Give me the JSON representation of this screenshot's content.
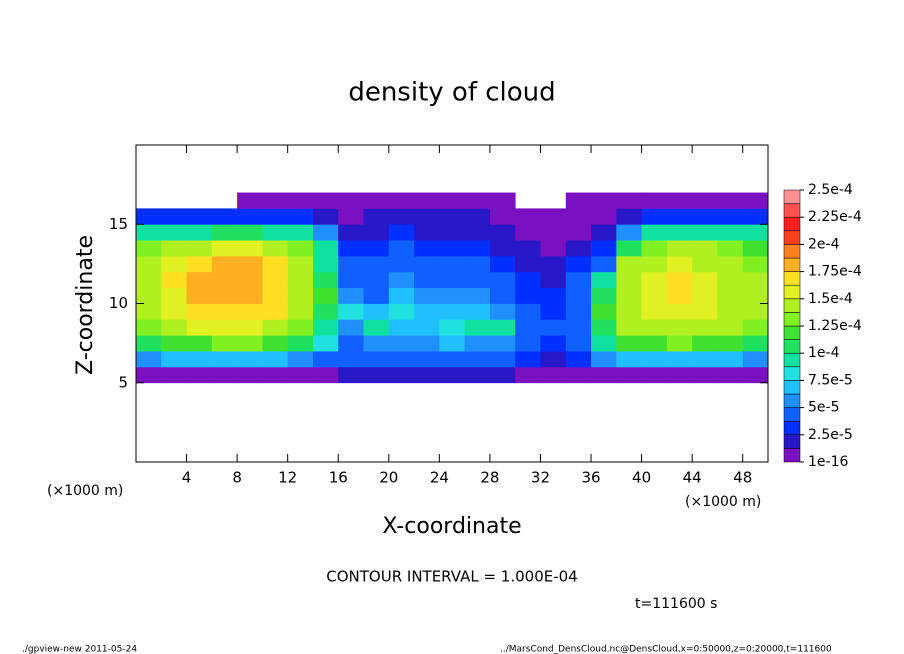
{
  "chart_data": {
    "type": "heatmap",
    "title": "density of cloud",
    "x_label": "X-coordinate",
    "y_label": "Z-coordinate",
    "x_unit": "(×1000 m)",
    "annotation": "CONTOUR INTERVAL = 1.000E-04",
    "time_label": "t=111600 s",
    "footer_left": "./gpview-new  2011-05-24",
    "footer_right": "../MarsCond_DensCloud.nc@DensCloud,x=0:50000,z=0:20000,t=111600",
    "xlim": [
      0,
      50
    ],
    "ylim": [
      0,
      20
    ],
    "xticks": [
      4,
      8,
      12,
      16,
      20,
      24,
      28,
      32,
      36,
      40,
      44,
      48
    ],
    "yticks": [
      5,
      10,
      15
    ],
    "x": [
      1,
      3,
      5,
      7,
      9,
      11,
      13,
      15,
      17,
      19,
      21,
      23,
      25,
      27,
      29,
      31,
      33,
      35,
      37,
      39,
      41,
      43,
      45,
      47,
      49
    ],
    "z": [
      5.5,
      6.5,
      7.5,
      8.5,
      9.5,
      10.5,
      11.5,
      12.5,
      13.5,
      14.5,
      15.5,
      16.5
    ],
    "values": [
      [
        1e-05,
        6e-05,
        0.00011,
        0.00013,
        0.00014,
        0.00015,
        0.00015,
        0.00014,
        0.00013,
        9e-05,
        3e-05,
        null
      ],
      [
        1e-05,
        7e-05,
        0.00012,
        0.00015,
        0.00016,
        0.00016,
        0.00017,
        0.00016,
        0.00015,
        0.0001,
        3e-05,
        null
      ],
      [
        1e-05,
        7e-05,
        0.00012,
        0.00016,
        0.00017,
        0.00018,
        0.00018,
        0.00017,
        0.00015,
        0.0001,
        3e-05,
        null
      ],
      [
        1e-05,
        7e-05,
        0.00013,
        0.00016,
        0.00017,
        0.00018,
        0.00018,
        0.00018,
        0.00016,
        0.00011,
        3e-05,
        null
      ],
      [
        1e-05,
        7e-05,
        0.00013,
        0.00016,
        0.00017,
        0.00018,
        0.00018,
        0.00018,
        0.00016,
        0.00011,
        3e-05,
        1e-05
      ],
      [
        1e-05,
        7e-05,
        0.00012,
        0.00015,
        0.00017,
        0.00017,
        0.00017,
        0.00017,
        0.00015,
        0.0001,
        3e-05,
        1e-05
      ],
      [
        1e-05,
        6e-05,
        0.00011,
        0.00013,
        0.00014,
        0.00015,
        0.00015,
        0.00015,
        0.00013,
        9e-05,
        3e-05,
        1e-05
      ],
      [
        1e-05,
        4e-05,
        8e-05,
        0.0001,
        0.00011,
        0.00012,
        0.00011,
        0.0001,
        9e-05,
        6e-05,
        2e-05,
        1e-05
      ],
      [
        2e-05,
        4e-05,
        5e-05,
        6e-05,
        8e-05,
        6e-05,
        5e-05,
        4e-05,
        3e-05,
        2e-05,
        1e-05,
        1e-05
      ],
      [
        2e-05,
        5e-05,
        6e-05,
        9e-05,
        7e-05,
        5e-05,
        5e-05,
        4e-05,
        3e-05,
        2e-05,
        2e-05,
        1e-05
      ],
      [
        2e-05,
        5e-05,
        6e-05,
        7e-05,
        8e-05,
        7e-05,
        6e-05,
        5e-05,
        4e-05,
        3e-05,
        2e-05,
        1e-05
      ],
      [
        2e-05,
        5e-05,
        6e-05,
        7e-05,
        7e-05,
        6e-05,
        5e-05,
        4e-05,
        3e-05,
        2e-05,
        2e-05,
        1e-05
      ],
      [
        2e-05,
        5e-05,
        7e-05,
        8e-05,
        7e-05,
        6e-05,
        5e-05,
        4e-05,
        3e-05,
        2e-05,
        2e-05,
        1e-05
      ],
      [
        2e-05,
        4e-05,
        6e-05,
        9e-05,
        7e-05,
        6e-05,
        5e-05,
        4e-05,
        3e-05,
        2e-05,
        2e-05,
        1e-05
      ],
      [
        2e-05,
        4e-05,
        6e-05,
        0.0001,
        6e-05,
        5e-05,
        4e-05,
        3e-05,
        2e-05,
        2e-05,
        1e-05,
        1e-05
      ],
      [
        1e-05,
        3e-05,
        4e-05,
        5e-05,
        4e-05,
        3e-05,
        3e-05,
        2e-05,
        2e-05,
        1e-05,
        1e-05,
        null
      ],
      [
        1e-05,
        2e-05,
        3e-05,
        4e-05,
        3e-05,
        3e-05,
        2e-05,
        2e-05,
        1e-05,
        1e-05,
        1e-05,
        null
      ],
      [
        1e-05,
        3e-05,
        4e-05,
        5e-05,
        5e-05,
        4e-05,
        4e-05,
        3e-05,
        2e-05,
        1e-05,
        1e-05,
        1e-05
      ],
      [
        1e-05,
        6e-05,
        9e-05,
        0.00011,
        0.00012,
        0.00011,
        9e-05,
        5e-05,
        3e-05,
        2e-05,
        1e-05,
        1e-05
      ],
      [
        1e-05,
        7e-05,
        0.00012,
        0.00014,
        0.00015,
        0.00015,
        0.00015,
        0.00014,
        0.00011,
        6e-05,
        2e-05,
        1e-05
      ],
      [
        1e-05,
        7e-05,
        0.00012,
        0.00015,
        0.00016,
        0.00016,
        0.00016,
        0.00015,
        0.00013,
        9e-05,
        3e-05,
        1e-05
      ],
      [
        1e-05,
        7e-05,
        0.00013,
        0.00015,
        0.00016,
        0.00017,
        0.00017,
        0.00016,
        0.00014,
        0.0001,
        3e-05,
        1e-05
      ],
      [
        1e-05,
        7e-05,
        0.00012,
        0.00015,
        0.00016,
        0.00016,
        0.00016,
        0.00015,
        0.00014,
        0.0001,
        3e-05,
        1e-05
      ],
      [
        1e-05,
        7e-05,
        0.00012,
        0.00014,
        0.00015,
        0.00015,
        0.00015,
        0.00014,
        0.00013,
        0.0001,
        3e-05,
        1e-05
      ],
      [
        1e-05,
        6e-05,
        0.00011,
        0.00013,
        0.00014,
        0.00014,
        0.00014,
        0.00013,
        0.00012,
        9e-05,
        3e-05,
        1e-05
      ]
    ],
    "clim": [
      1e-16,
      0.00025
    ],
    "colors": [
      "#7a10c0",
      "#2818c8",
      "#0030ff",
      "#1060ff",
      "#2090ff",
      "#20c0ff",
      "#20e0e0",
      "#10e0a0",
      "#20e060",
      "#40e030",
      "#80f020",
      "#b0f020",
      "#e0f020",
      "#ffe020",
      "#ffb020",
      "#ff8020",
      "#ff4020",
      "#ff2020",
      "#ff5050",
      "#ff9090"
    ],
    "cticks": [
      {
        "value": 1e-16,
        "label": "1e-16"
      },
      {
        "value": 2.5e-05,
        "label": "2.5e-5"
      },
      {
        "value": 5e-05,
        "label": "5e-5"
      },
      {
        "value": 7.5e-05,
        "label": "7.5e-5"
      },
      {
        "value": 0.0001,
        "label": "1e-4"
      },
      {
        "value": 0.000125,
        "label": "1.25e-4"
      },
      {
        "value": 0.00015,
        "label": "1.5e-4"
      },
      {
        "value": 0.000175,
        "label": "1.75e-4"
      },
      {
        "value": 0.0002,
        "label": "2e-4"
      },
      {
        "value": 0.000225,
        "label": "2.25e-4"
      },
      {
        "value": 0.00025,
        "label": "2.5e-4"
      }
    ]
  }
}
